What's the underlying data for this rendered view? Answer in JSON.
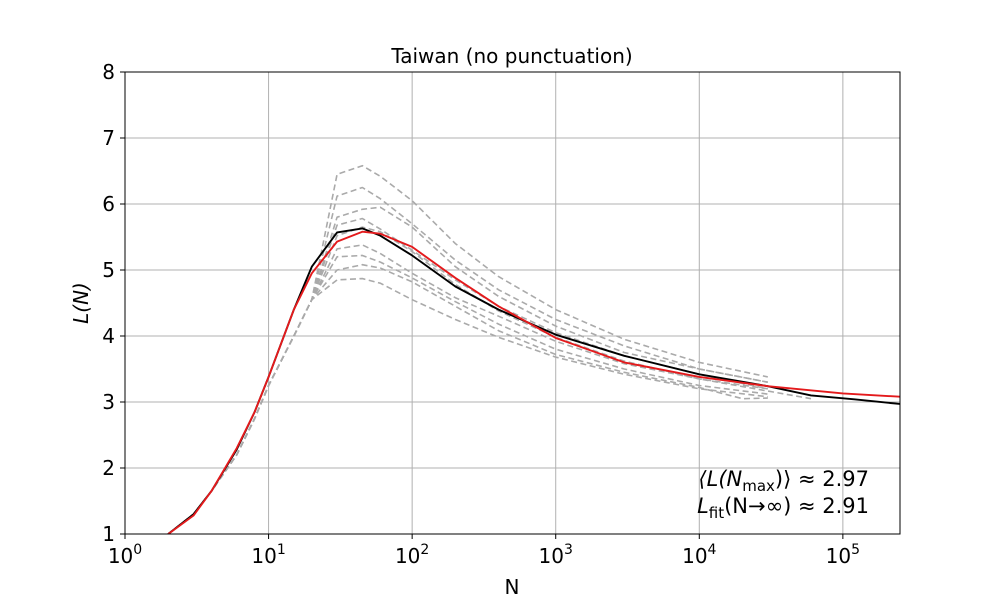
{
  "chart_data": {
    "type": "line",
    "title": "Taiwan (no punctuation)",
    "xlabel": "N",
    "ylabel": "L(N)",
    "xscale": "log",
    "xlim": [
      1,
      250000
    ],
    "ylim": [
      1,
      8
    ],
    "grid": true,
    "x_ticks": [
      {
        "value": 1,
        "base": "10",
        "exp": "0"
      },
      {
        "value": 10,
        "base": "10",
        "exp": "1"
      },
      {
        "value": 100,
        "base": "10",
        "exp": "2"
      },
      {
        "value": 1000,
        "base": "10",
        "exp": "3"
      },
      {
        "value": 10000,
        "base": "10",
        "exp": "4"
      },
      {
        "value": 100000,
        "base": "10",
        "exp": "5"
      }
    ],
    "y_ticks": [
      {
        "value": 1,
        "label": "1"
      },
      {
        "value": 2,
        "label": "2"
      },
      {
        "value": 3,
        "label": "3"
      },
      {
        "value": 4,
        "label": "4"
      },
      {
        "value": 5,
        "label": "5"
      },
      {
        "value": 6,
        "label": "6"
      },
      {
        "value": 7,
        "label": "7"
      },
      {
        "value": 8,
        "label": "8"
      }
    ],
    "series": [
      {
        "style": "main",
        "color": "#000000",
        "points": [
          [
            2,
            1.0
          ],
          [
            3,
            1.3
          ],
          [
            4,
            1.65
          ],
          [
            6,
            2.28
          ],
          [
            8,
            2.85
          ],
          [
            10,
            3.38
          ],
          [
            15,
            4.4
          ],
          [
            20,
            5.05
          ],
          [
            30,
            5.57
          ],
          [
            45,
            5.63
          ],
          [
            60,
            5.52
          ],
          [
            100,
            5.22
          ],
          [
            200,
            4.75
          ],
          [
            400,
            4.4
          ],
          [
            1000,
            4.02
          ],
          [
            3000,
            3.7
          ],
          [
            10000,
            3.42
          ],
          [
            30000,
            3.24
          ],
          [
            60000,
            3.1
          ],
          [
            120000,
            3.04
          ],
          [
            250000,
            2.97
          ]
        ]
      },
      {
        "style": "fit",
        "color": "#e41a1c",
        "points": [
          [
            2,
            1.0
          ],
          [
            3,
            1.28
          ],
          [
            4,
            1.65
          ],
          [
            6,
            2.3
          ],
          [
            8,
            2.85
          ],
          [
            10,
            3.38
          ],
          [
            15,
            4.4
          ],
          [
            20,
            4.95
          ],
          [
            30,
            5.43
          ],
          [
            45,
            5.58
          ],
          [
            60,
            5.55
          ],
          [
            100,
            5.35
          ],
          [
            200,
            4.88
          ],
          [
            400,
            4.45
          ],
          [
            1000,
            3.97
          ],
          [
            3000,
            3.6
          ],
          [
            10000,
            3.38
          ],
          [
            30000,
            3.24
          ],
          [
            100000,
            3.13
          ],
          [
            250000,
            3.08
          ]
        ]
      },
      {
        "style": "sample",
        "color": "#aaaaaa",
        "points": [
          [
            2,
            1.0
          ],
          [
            3,
            1.3
          ],
          [
            4,
            1.65
          ],
          [
            6,
            2.2
          ],
          [
            8,
            2.75
          ],
          [
            10,
            3.25
          ],
          [
            15,
            4.0
          ],
          [
            20,
            4.55
          ],
          [
            30,
            6.45
          ],
          [
            45,
            6.58
          ],
          [
            60,
            6.42
          ],
          [
            100,
            6.05
          ],
          [
            200,
            5.4
          ],
          [
            400,
            4.9
          ],
          [
            1000,
            4.4
          ],
          [
            3000,
            3.95
          ],
          [
            10000,
            3.6
          ],
          [
            30000,
            3.38
          ]
        ]
      },
      {
        "style": "sample",
        "color": "#aaaaaa",
        "points": [
          [
            2,
            1.0
          ],
          [
            3,
            1.3
          ],
          [
            4,
            1.65
          ],
          [
            6,
            2.2
          ],
          [
            8,
            2.75
          ],
          [
            10,
            3.25
          ],
          [
            15,
            4.0
          ],
          [
            20,
            4.55
          ],
          [
            30,
            6.12
          ],
          [
            45,
            6.25
          ],
          [
            60,
            6.08
          ],
          [
            100,
            5.7
          ],
          [
            200,
            5.15
          ],
          [
            400,
            4.7
          ],
          [
            1000,
            4.25
          ],
          [
            3000,
            3.85
          ],
          [
            10000,
            3.5
          ],
          [
            30000,
            3.3
          ]
        ]
      },
      {
        "style": "sample",
        "color": "#aaaaaa",
        "points": [
          [
            2,
            1.0
          ],
          [
            3,
            1.3
          ],
          [
            4,
            1.65
          ],
          [
            6,
            2.2
          ],
          [
            8,
            2.75
          ],
          [
            10,
            3.25
          ],
          [
            15,
            4.0
          ],
          [
            20,
            4.55
          ],
          [
            30,
            5.8
          ],
          [
            45,
            5.92
          ],
          [
            60,
            5.95
          ],
          [
            100,
            5.65
          ],
          [
            200,
            5.05
          ],
          [
            400,
            4.6
          ],
          [
            1000,
            4.15
          ],
          [
            3000,
            3.75
          ],
          [
            10000,
            3.5
          ],
          [
            30000,
            3.3
          ]
        ]
      },
      {
        "style": "sample",
        "color": "#aaaaaa",
        "points": [
          [
            2,
            1.0
          ],
          [
            3,
            1.3
          ],
          [
            4,
            1.65
          ],
          [
            6,
            2.2
          ],
          [
            8,
            2.75
          ],
          [
            10,
            3.25
          ],
          [
            15,
            4.0
          ],
          [
            20,
            4.55
          ],
          [
            30,
            5.68
          ],
          [
            45,
            5.78
          ],
          [
            60,
            5.62
          ],
          [
            100,
            5.3
          ],
          [
            200,
            4.85
          ],
          [
            400,
            4.45
          ],
          [
            1000,
            4.05
          ],
          [
            3000,
            3.7
          ],
          [
            10000,
            3.42
          ],
          [
            30000,
            3.2
          ]
        ]
      },
      {
        "style": "sample",
        "color": "#aaaaaa",
        "points": [
          [
            2,
            1.0
          ],
          [
            3,
            1.3
          ],
          [
            4,
            1.65
          ],
          [
            6,
            2.2
          ],
          [
            8,
            2.75
          ],
          [
            10,
            3.25
          ],
          [
            15,
            4.0
          ],
          [
            20,
            4.55
          ],
          [
            30,
            5.52
          ],
          [
            45,
            5.65
          ],
          [
            60,
            5.58
          ],
          [
            100,
            5.28
          ],
          [
            200,
            4.78
          ],
          [
            400,
            4.38
          ],
          [
            1000,
            3.98
          ],
          [
            3000,
            3.62
          ],
          [
            10000,
            3.35
          ],
          [
            60000,
            3.05
          ]
        ]
      },
      {
        "style": "sample",
        "color": "#aaaaaa",
        "points": [
          [
            2,
            1.0
          ],
          [
            3,
            1.3
          ],
          [
            4,
            1.65
          ],
          [
            6,
            2.2
          ],
          [
            8,
            2.75
          ],
          [
            10,
            3.25
          ],
          [
            15,
            4.0
          ],
          [
            20,
            4.55
          ],
          [
            30,
            5.32
          ],
          [
            45,
            5.38
          ],
          [
            60,
            5.25
          ],
          [
            100,
            4.95
          ],
          [
            200,
            4.58
          ],
          [
            400,
            4.3
          ],
          [
            1000,
            3.92
          ],
          [
            3000,
            3.58
          ],
          [
            10000,
            3.35
          ],
          [
            30000,
            3.2
          ]
        ]
      },
      {
        "style": "sample",
        "color": "#aaaaaa",
        "points": [
          [
            2,
            1.0
          ],
          [
            3,
            1.3
          ],
          [
            4,
            1.65
          ],
          [
            6,
            2.2
          ],
          [
            8,
            2.75
          ],
          [
            10,
            3.25
          ],
          [
            15,
            4.0
          ],
          [
            20,
            4.55
          ],
          [
            30,
            5.2
          ],
          [
            45,
            5.22
          ],
          [
            60,
            5.12
          ],
          [
            100,
            4.88
          ],
          [
            200,
            4.52
          ],
          [
            400,
            4.18
          ],
          [
            1000,
            3.8
          ],
          [
            3000,
            3.5
          ],
          [
            10000,
            3.25
          ],
          [
            30000,
            3.12
          ]
        ]
      },
      {
        "style": "sample",
        "color": "#aaaaaa",
        "points": [
          [
            2,
            1.0
          ],
          [
            3,
            1.3
          ],
          [
            4,
            1.65
          ],
          [
            6,
            2.2
          ],
          [
            8,
            2.75
          ],
          [
            10,
            3.25
          ],
          [
            15,
            4.0
          ],
          [
            20,
            4.55
          ],
          [
            30,
            5.0
          ],
          [
            45,
            5.08
          ],
          [
            60,
            5.03
          ],
          [
            100,
            4.82
          ],
          [
            200,
            4.45
          ],
          [
            400,
            4.08
          ],
          [
            1000,
            3.72
          ],
          [
            3000,
            3.45
          ],
          [
            10000,
            3.22
          ],
          [
            20000,
            3.05
          ],
          [
            30000,
            3.06
          ]
        ]
      },
      {
        "style": "sample",
        "color": "#aaaaaa",
        "points": [
          [
            2,
            1.0
          ],
          [
            3,
            1.3
          ],
          [
            4,
            1.65
          ],
          [
            6,
            2.2
          ],
          [
            8,
            2.75
          ],
          [
            10,
            3.25
          ],
          [
            15,
            4.0
          ],
          [
            20,
            4.55
          ],
          [
            30,
            4.85
          ],
          [
            45,
            4.87
          ],
          [
            60,
            4.8
          ],
          [
            100,
            4.55
          ],
          [
            200,
            4.25
          ],
          [
            400,
            3.98
          ],
          [
            1000,
            3.68
          ],
          [
            3000,
            3.42
          ],
          [
            10000,
            3.2
          ],
          [
            30000,
            3.08
          ]
        ]
      }
    ],
    "annotations": [
      {
        "text_a": "⟨L(N",
        "sub": "max",
        "text_b": ")⟩ ≈ 2.97"
      },
      {
        "text_a": "L",
        "sub": "fit",
        "text_b": "(N→∞) ≈ 2.91"
      }
    ]
  }
}
